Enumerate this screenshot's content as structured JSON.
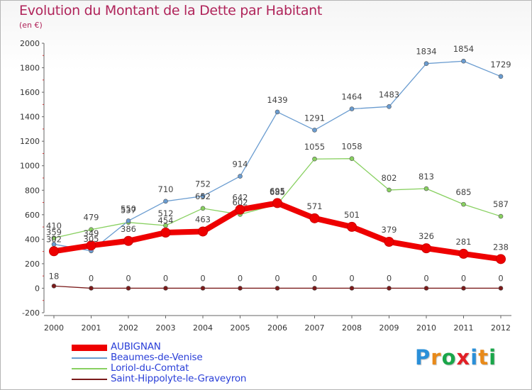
{
  "chart_data": {
    "type": "line",
    "title": "Evolution du Montant de la Dette par Habitant",
    "subtitle": "(en €)",
    "xlabel": "",
    "ylabel": "",
    "categories": [
      "2000",
      "2001",
      "2002",
      "2003",
      "2004",
      "2005",
      "2006",
      "2007",
      "2008",
      "2009",
      "2010",
      "2011",
      "2012"
    ],
    "ylim": [
      -200,
      2000
    ],
    "yticks": [
      "-200",
      "0",
      "200",
      "400",
      "600",
      "800",
      "1000",
      "1200",
      "1400",
      "1600",
      "1800",
      "2000"
    ],
    "grid": false,
    "legend_position": "bottom-left",
    "series": [
      {
        "name": "Saint-Hippolyte-le-Graveyron",
        "color": "#7a1a1a",
        "values": [
          18,
          0,
          0,
          0,
          0,
          0,
          0,
          0,
          0,
          0,
          0,
          0,
          0
        ]
      },
      {
        "name": "Loriol-du-Comtat",
        "color": "#88d060",
        "values": [
          410,
          479,
          537,
          512,
          652,
          602,
          685,
          1055,
          1058,
          802,
          813,
          685,
          587
        ]
      },
      {
        "name": "Beaumes-de-Venise",
        "color": "#6a9cd0",
        "values": [
          359,
          305,
          550,
          710,
          752,
          914,
          1439,
          1291,
          1464,
          1483,
          1834,
          1854,
          1729
        ]
      },
      {
        "name": "AUBIGNAN",
        "color": "#ee0000",
        "values": [
          302,
          349,
          386,
          454,
          463,
          642,
          695,
          571,
          501,
          379,
          326,
          281,
          238
        ]
      }
    ],
    "legend": [
      {
        "name": "AUBIGNAN",
        "color": "#ee0000"
      },
      {
        "name": "Beaumes-de-Venise",
        "color": "#6a9cd0"
      },
      {
        "name": "Loriol-du-Comtat",
        "color": "#88d060"
      },
      {
        "name": "Saint-Hippolyte-le-Graveyron",
        "color": "#7a1a1a"
      }
    ]
  },
  "branding": {
    "logo_text": "Proxiti",
    "logo_letters": [
      "P",
      "r",
      "o",
      "x",
      "i",
      "t",
      "i"
    ],
    "logo_colors": [
      "#2a8fd8",
      "#e88a1a",
      "#1aa64a",
      "#e21f26",
      "#2a8fd8",
      "#e88a1a",
      "#1aa64a"
    ]
  },
  "colors": {
    "title": "#b0245a",
    "axis": "#333333",
    "legend_text": "#2a3fd8"
  }
}
